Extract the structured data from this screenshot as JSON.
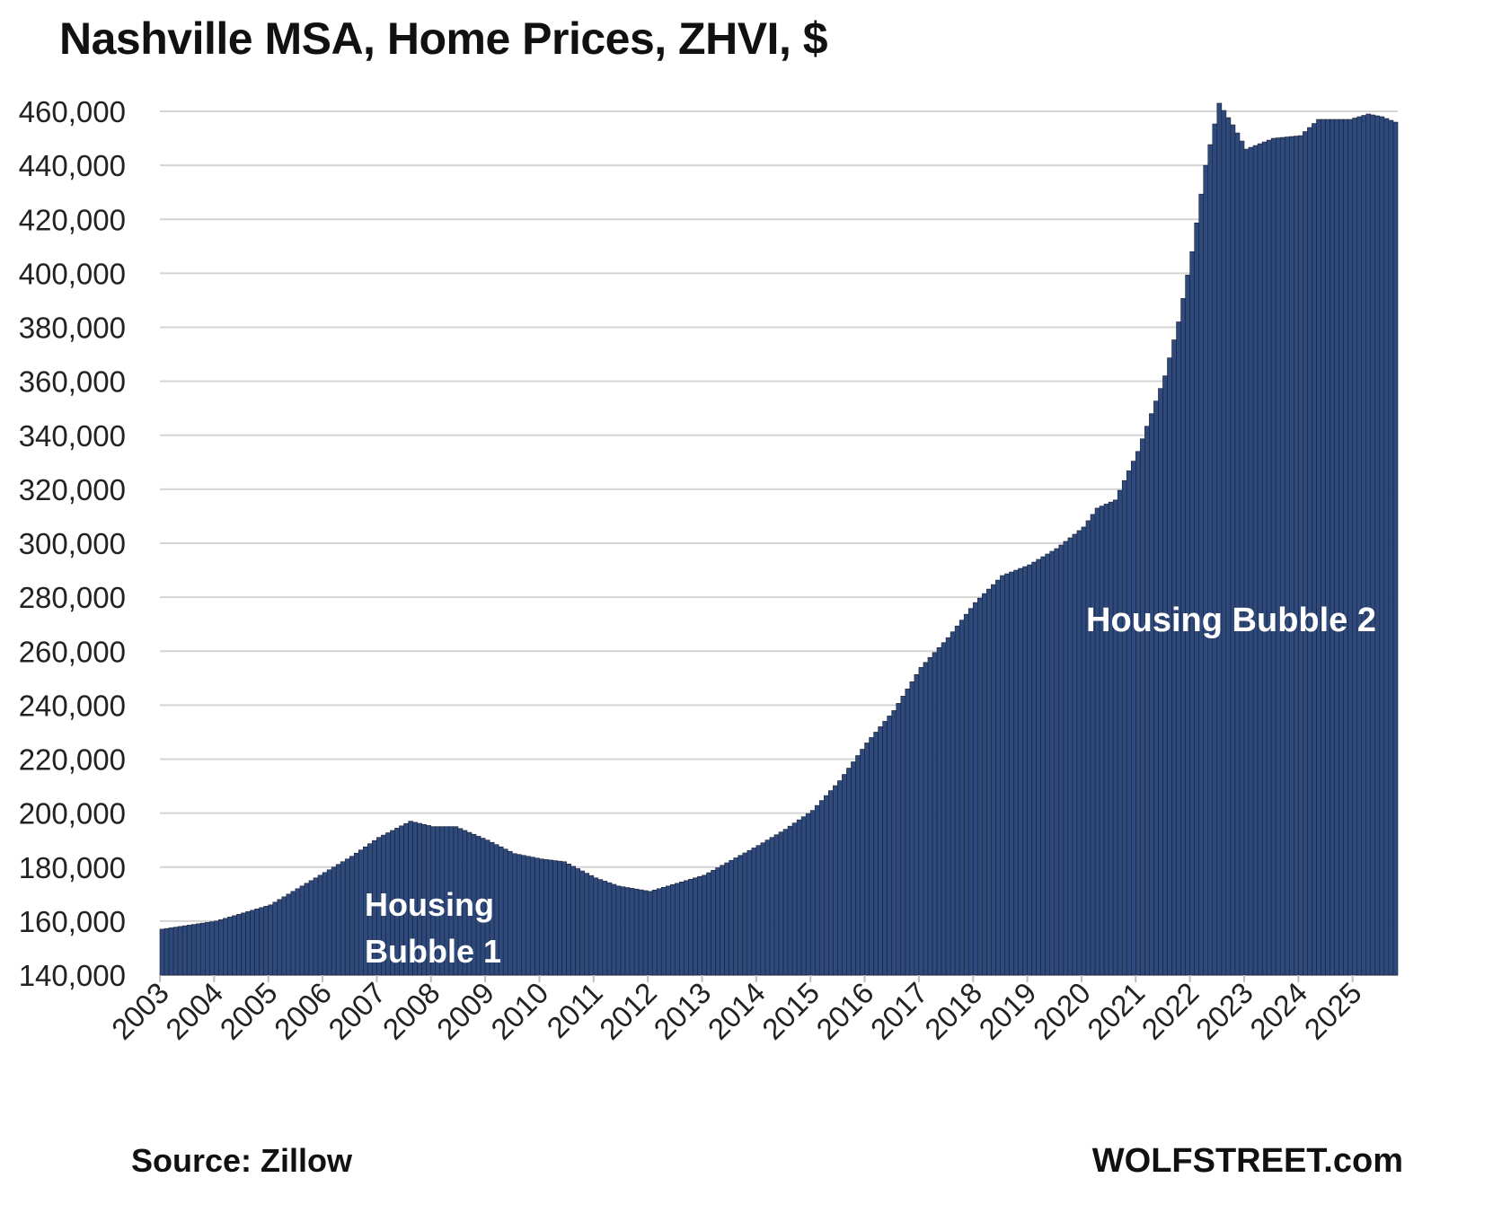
{
  "chart_data": {
    "type": "bar",
    "title": "Nashville MSA, Home Prices, ZHVI, $",
    "xlabel": "",
    "ylabel": "",
    "ylim": [
      140000,
      460000
    ],
    "yticks": [
      "140,000",
      "160,000",
      "180,000",
      "200,000",
      "220,000",
      "240,000",
      "260,000",
      "280,000",
      "300,000",
      "320,000",
      "340,000",
      "360,000",
      "380,000",
      "400,000",
      "420,000",
      "440,000",
      "460,000"
    ],
    "xticks": [
      "2003",
      "2004",
      "2005",
      "2006",
      "2007",
      "2008",
      "2009",
      "2010",
      "2011",
      "2012",
      "2013",
      "2014",
      "2015",
      "2016",
      "2017",
      "2018",
      "2019",
      "2020",
      "2021",
      "2022",
      "2023",
      "2024",
      "2025"
    ],
    "grid": true,
    "series": [
      {
        "color": "#2e4a7d",
        "monthly_from": "2003-01",
        "anchors": [
          [
            "2003-01",
            157000
          ],
          [
            "2004-01",
            160000
          ],
          [
            "2005-01",
            166000
          ],
          [
            "2006-01",
            178000
          ],
          [
            "2006-07",
            184000
          ],
          [
            "2007-01",
            191000
          ],
          [
            "2007-08",
            197000
          ],
          [
            "2008-01",
            195000
          ],
          [
            "2008-06",
            195000
          ],
          [
            "2009-01",
            190000
          ],
          [
            "2009-07",
            185000
          ],
          [
            "2010-01",
            183000
          ],
          [
            "2010-06",
            182000
          ],
          [
            "2011-01",
            176000
          ],
          [
            "2011-06",
            173000
          ],
          [
            "2012-01",
            171000
          ],
          [
            "2012-07",
            174000
          ],
          [
            "2013-01",
            177000
          ],
          [
            "2014-01",
            188000
          ],
          [
            "2014-07",
            194000
          ],
          [
            "2015-01",
            201000
          ],
          [
            "2015-07",
            212000
          ],
          [
            "2016-01",
            226000
          ],
          [
            "2016-07",
            238000
          ],
          [
            "2017-01",
            254000
          ],
          [
            "2017-07",
            265000
          ],
          [
            "2018-01",
            278000
          ],
          [
            "2018-07",
            288000
          ],
          [
            "2019-01",
            292000
          ],
          [
            "2019-07",
            298000
          ],
          [
            "2020-01",
            306000
          ],
          [
            "2020-04",
            313000
          ],
          [
            "2020-08",
            316000
          ],
          [
            "2021-01",
            334000
          ],
          [
            "2021-07",
            362000
          ],
          [
            "2021-10",
            382000
          ],
          [
            "2022-01",
            408000
          ],
          [
            "2022-04",
            440000
          ],
          [
            "2022-07",
            463000
          ],
          [
            "2022-10",
            455000
          ],
          [
            "2023-01",
            446000
          ],
          [
            "2023-07",
            450000
          ],
          [
            "2024-01",
            451000
          ],
          [
            "2024-05",
            457000
          ],
          [
            "2024-12",
            457000
          ],
          [
            "2025-04",
            459000
          ],
          [
            "2025-07",
            458000
          ],
          [
            "2025-10",
            456000
          ]
        ],
        "end": "2025-10"
      }
    ],
    "annotations": [
      "Housing",
      "Bubble 1",
      "Housing Bubble 2"
    ]
  },
  "footer": {
    "source": "Source: Zillow",
    "brand": "WOLFSTREET.com"
  }
}
